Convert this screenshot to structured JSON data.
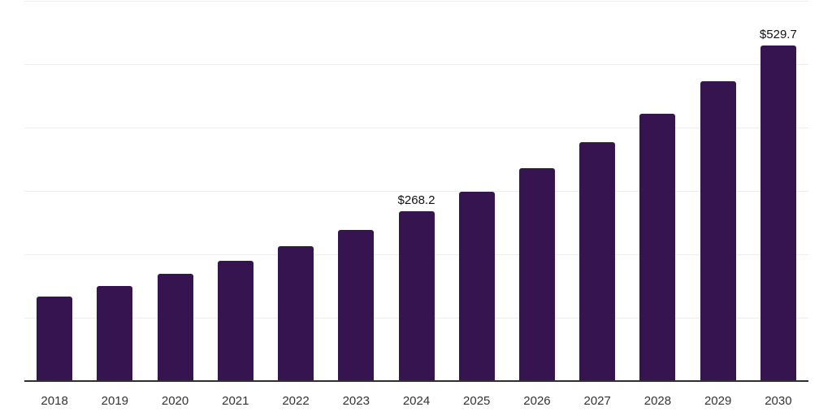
{
  "chart_data": {
    "type": "bar",
    "title": "",
    "xlabel": "",
    "ylabel": "",
    "categories": [
      "2018",
      "2019",
      "2020",
      "2021",
      "2022",
      "2023",
      "2024",
      "2025",
      "2026",
      "2027",
      "2028",
      "2029",
      "2030"
    ],
    "values": [
      133.4,
      150.5,
      169.0,
      189.8,
      213.3,
      238.9,
      268.2,
      299.2,
      335.6,
      376.7,
      422.0,
      473.2,
      529.7
    ],
    "data_labels": {
      "2024": "$268.2",
      "2030": "$529.7"
    },
    "ylim": [
      0,
      600
    ],
    "gridline_step": 100,
    "grid": "horizontal-only",
    "legend": "none",
    "y_axis_tick_labels_visible": false,
    "colors": {
      "bar": "#351450",
      "gridline": "#ededed",
      "axis_line": "#2f2f2f",
      "tick_label": "#333333",
      "data_label": "#111111",
      "background": "#ffffff"
    }
  }
}
